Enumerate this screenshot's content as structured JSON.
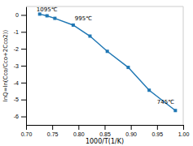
{
  "chart_data": {
    "type": "line",
    "x": [
      0.726,
      0.74,
      0.755,
      0.79,
      0.822,
      0.855,
      0.895,
      0.935,
      0.985
    ],
    "values": [
      0.05,
      -0.05,
      -0.2,
      -0.6,
      -1.25,
      -2.15,
      -3.1,
      -4.45,
      -5.65
    ],
    "marker": "square",
    "xlabel": "1000/T(1/K)",
    "ylabel": "lnQ=ln(Cco/Cco+2Cco2))",
    "xlim": [
      0.7,
      1.0
    ],
    "ylim": [
      -6.5,
      0.5
    ],
    "xticks": [
      {
        "value": 0.7,
        "label": "0.70"
      },
      0.75,
      {
        "value": 0.8,
        "label": "0.80"
      },
      0.85,
      {
        "value": 0.9,
        "label": "0.90"
      },
      0.95,
      {
        "value": 1.0,
        "label": "1.00"
      }
    ],
    "yticks": [
      0,
      -1,
      -2,
      -3,
      -4,
      -5,
      -6
    ],
    "annotations": [
      {
        "text": "1095℃",
        "x": 0.72,
        "y": 0.18
      },
      {
        "text": "995℃",
        "x": 0.793,
        "y": -0.38
      },
      {
        "text": "745℃",
        "x": 0.95,
        "y": -5.3
      }
    ]
  }
}
